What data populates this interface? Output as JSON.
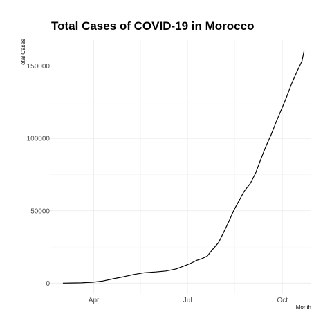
{
  "chart_data": {
    "type": "line",
    "title": "Total Cases of COVID-19 in Morocco",
    "xlabel": "Month",
    "ylabel": "Total Cases",
    "x_ticks": [
      {
        "label": "Apr",
        "date": "2020-04-01"
      },
      {
        "label": "Jul",
        "date": "2020-07-01"
      },
      {
        "label": "Oct",
        "date": "2020-10-01"
      }
    ],
    "y_ticks": [
      0,
      50000,
      100000,
      150000
    ],
    "y_tick_labels": [
      "0",
      "50000",
      "100000",
      "150000"
    ],
    "xlim": [
      "2020-02-19",
      "2020-10-29"
    ],
    "ylim": [
      -7500,
      168000
    ],
    "grid": true,
    "line_color": "#000000",
    "series": [
      {
        "x": [
          "2020-03-02",
          "2020-03-10",
          "2020-03-20",
          "2020-03-31",
          "2020-04-10",
          "2020-04-20",
          "2020-04-30",
          "2020-05-10",
          "2020-05-20",
          "2020-05-31",
          "2020-06-10",
          "2020-06-20",
          "2020-06-30",
          "2020-07-05",
          "2020-07-10",
          "2020-07-15",
          "2020-07-20",
          "2020-07-25",
          "2020-07-31",
          "2020-08-05",
          "2020-08-10",
          "2020-08-15",
          "2020-08-20",
          "2020-08-25",
          "2020-08-31",
          "2020-09-05",
          "2020-09-10",
          "2020-09-15",
          "2020-09-20",
          "2020-09-25",
          "2020-09-30",
          "2020-10-05",
          "2020-10-10",
          "2020-10-15",
          "2020-10-20",
          "2020-10-22"
        ],
        "values": [
          1,
          80,
          200,
          650,
          1500,
          3000,
          4400,
          6000,
          7200,
          7700,
          8400,
          9800,
          12500,
          14000,
          15800,
          17000,
          18600,
          23000,
          28000,
          35000,
          42500,
          50500,
          57000,
          63500,
          69000,
          76000,
          85500,
          94500,
          102500,
          111500,
          120000,
          128500,
          138000,
          146000,
          153500,
          160500
        ]
      }
    ]
  }
}
